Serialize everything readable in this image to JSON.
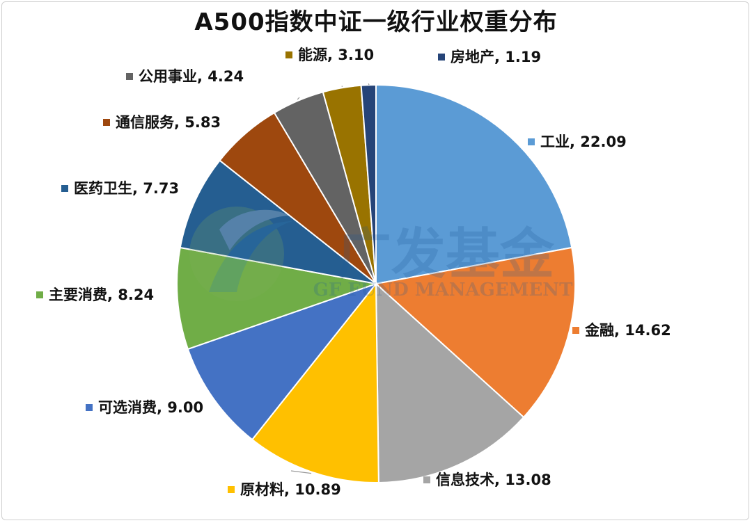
{
  "chart_data": {
    "type": "pie",
    "title": "A500指数中证一级行业权重分布",
    "series": [
      {
        "name": "工业",
        "value": 22.09,
        "label": "工业, 22.09",
        "color": "#5B9BD5"
      },
      {
        "name": "金融",
        "value": 14.62,
        "label": "金融, 14.62",
        "color": "#ED7D31"
      },
      {
        "name": "信息技术",
        "value": 13.08,
        "label": "信息技术, 13.08",
        "color": "#A5A5A5"
      },
      {
        "name": "原材料",
        "value": 10.89,
        "label": "原材料, 10.89",
        "color": "#FFC000"
      },
      {
        "name": "可选消费",
        "value": 9.0,
        "label": "可选消费, 9.00",
        "color": "#4472C4"
      },
      {
        "name": "主要消费",
        "value": 8.24,
        "label": "主要消费, 8.24",
        "color": "#70AD47"
      },
      {
        "name": "医药卫生",
        "value": 7.73,
        "label": "医药卫生, 7.73",
        "color": "#255E91"
      },
      {
        "name": "通信服务",
        "value": 5.83,
        "label": "通信服务, 5.83",
        "color": "#9E480E"
      },
      {
        "name": "公用事业",
        "value": 4.24,
        "label": "公用事业, 4.24",
        "color": "#636363"
      },
      {
        "name": "能源",
        "value": 3.1,
        "label": "能源, 3.10",
        "color": "#997300"
      },
      {
        "name": "房地产",
        "value": 1.19,
        "label": "房地产, 1.19",
        "color": "#264478"
      }
    ],
    "watermark": {
      "text": "广发基金",
      "subtext": "GF FUND MANAGEMENT"
    }
  }
}
